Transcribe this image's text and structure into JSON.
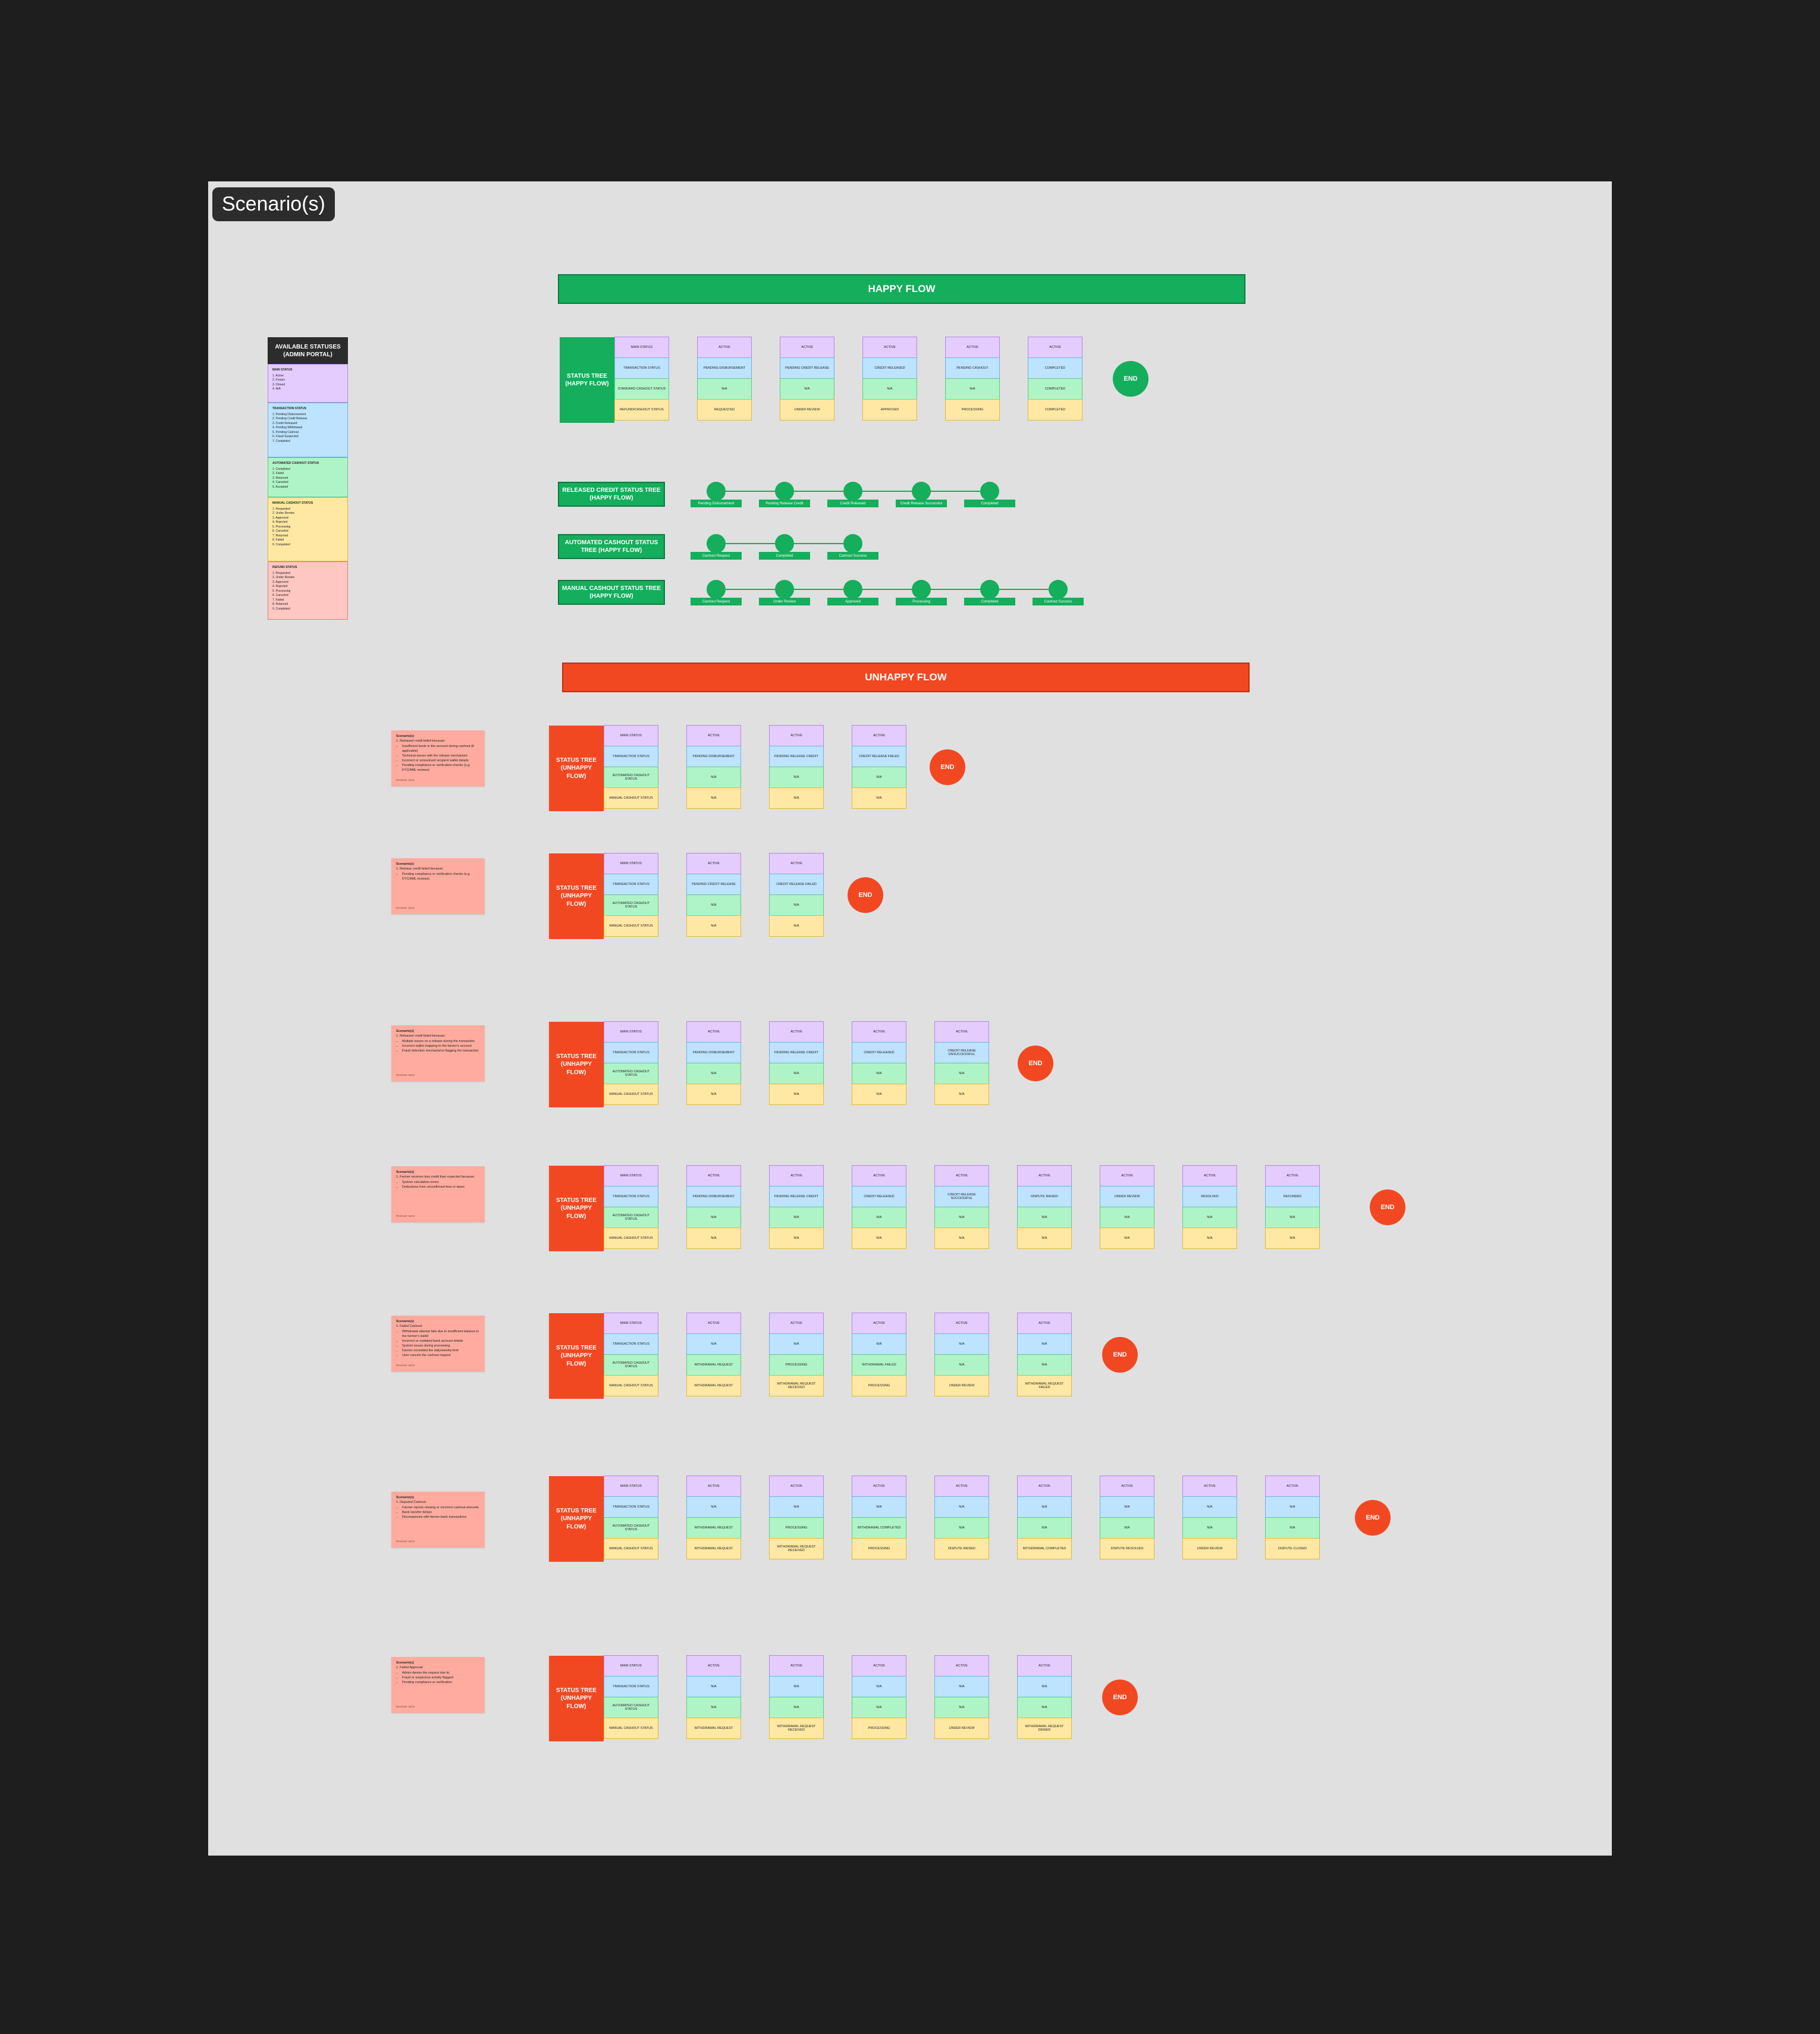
{
  "frame_label": "Scenario(s)",
  "happy_banner": "HAPPY FLOW",
  "unhappy_banner": "UNHAPPY FLOW",
  "end_label": "END",
  "legend": {
    "title": "AVAILABLE STATUSES (ADMIN PORTAL)",
    "sections": [
      {
        "color": "purple",
        "title": "MAIN STATUS",
        "items": [
          "1. Active",
          "2. Frozen",
          "3. Closed",
          "4. N/A"
        ]
      },
      {
        "color": "blue",
        "title": "TRANSACTION STATUS",
        "items": [
          "1. Pending Disbursement",
          "2. Pending Credit Release",
          "3. Credit Released",
          "4. Pending Withdrawal",
          "5. Pending Cashout",
          "6. Fraud Suspected",
          "7. Completed"
        ]
      },
      {
        "color": "green",
        "title": "AUTOMATED CASHOUT STATUS",
        "items": [
          "1. Completed",
          "2. Failed",
          "3. Returned",
          "4. Canceled",
          "5. Accepted"
        ]
      },
      {
        "color": "yellow",
        "title": "MANUAL CASHOUT STATUS",
        "items": [
          "1. Requested",
          "2. Under Review",
          "3. Approved",
          "4. Rejected",
          "5. Processing",
          "6. Canceled",
          "7. Returned",
          "8. Failed",
          "9. Completed"
        ]
      },
      {
        "color": "pink",
        "title": "REFUND STATUS",
        "items": [
          "1. Requested",
          "2. Under Review",
          "3. Approved",
          "4. Rejected",
          "5. Processing",
          "6. Canceled",
          "7. Failed",
          "8. Returned",
          "9. Completed"
        ]
      }
    ]
  },
  "happy_tree": {
    "label": "STATUS TREE (HAPPY FLOW)",
    "cards": [
      [
        "MAIN STATUS",
        "TRANSACTION STATUS",
        "STANDARD CASHOUT STATUS",
        "REFUND/CASHOUT STATUS"
      ],
      [
        "ACTIVE",
        "PENDING DISBURSEMENT",
        "N/A",
        "REQUESTED"
      ],
      [
        "ACTIVE",
        "PENDING CREDIT RELEASE",
        "N/A",
        "UNDER REVIEW"
      ],
      [
        "ACTIVE",
        "CREDIT RELEASED",
        "N/A",
        "APPROVED"
      ],
      [
        "ACTIVE",
        "PENDING CASHOUT",
        "N/A",
        "PROCESSING"
      ],
      [
        "ACTIVE",
        "COMPLETED",
        "COMPLETED",
        "COMPLETED"
      ]
    ]
  },
  "chains": [
    {
      "title": "RELEASED CREDIT STATUS TREE (HAPPY FLOW)",
      "nodes": [
        "Pending Disbursement",
        "Pending Release Credit",
        "Credit Released",
        "Credit Release Successful",
        "Completed"
      ]
    },
    {
      "title": "AUTOMATED CASHOUT STATUS TREE (HAPPY FLOW)",
      "nodes": [
        "Cashout Request",
        "Completed",
        "Cashout Success"
      ]
    },
    {
      "title": "MANUAL CASHOUT STATUS TREE (HAPPY FLOW)",
      "nodes": [
        "Cashout Request",
        "Under Review",
        "Approved",
        "Processing",
        "Completed",
        "Cashout Success"
      ]
    }
  ],
  "unhappy_label": "STATUS TREE (UNHAPPY FLOW)",
  "scenarios": [
    {
      "note": {
        "title": "Scenario(s)",
        "lead": "1. Released credit failed because:",
        "bullets": [
          "Insufficient funds in the account during cashout (if applicable)",
          "Technical issues with the release mechanism",
          "Incorrect or unresolved recipient wallet details",
          "Pending compliance or verification checks (e.g. KYC/AML reviews)"
        ],
        "sig": "Reviewer name"
      },
      "cards": [
        [
          "MAIN STATUS",
          "TRANSACTION STATUS",
          "AUTOMATED CASHOUT STATUS",
          "MANUAL CASHOUT STATUS"
        ],
        [
          "ACTIVE",
          "PENDING DISBURSEMENT",
          "N/A",
          "N/A"
        ],
        [
          "ACTIVE",
          "PENDING RELEASE CREDIT",
          "N/A",
          "N/A"
        ],
        [
          "ACTIVE",
          "CREDIT RELEASE FAILED",
          "N/A",
          "N/A"
        ]
      ]
    },
    {
      "note": {
        "title": "Scenario(s)",
        "lead": "1. Release credit failed because:",
        "bullets": [
          "Pending compliance or verification checks (e.g. KYC/AML reviews)"
        ],
        "sig": "Reviewer name"
      },
      "cards": [
        [
          "MAIN STATUS",
          "TRANSACTION STATUS",
          "AUTOMATED CASHOUT STATUS",
          "MANUAL CASHOUT STATUS"
        ],
        [
          "ACTIVE",
          "PENDING CREDIT RELEASE",
          "N/A",
          "N/A"
        ],
        [
          "ACTIVE",
          "CREDIT RELEASE FAILED",
          "N/A",
          "N/A"
        ]
      ]
    },
    {
      "note": {
        "title": "Scenario(s)",
        "lead": "1. Released credit failed because:",
        "bullets": [
          "Multiple issues on a release during the transaction",
          "Incorrect wallet mapping to the farmer's account",
          "Fraud detection mechanisms flagging the transaction"
        ],
        "sig": "Reviewer name"
      },
      "cards": [
        [
          "MAIN STATUS",
          "TRANSACTION STATUS",
          "AUTOMATED CASHOUT STATUS",
          "MANUAL CASHOUT STATUS"
        ],
        [
          "ACTIVE",
          "PENDING DISBURSEMENT",
          "N/A",
          "N/A"
        ],
        [
          "ACTIVE",
          "PENDING RELEASE CREDIT",
          "N/A",
          "N/A"
        ],
        [
          "ACTIVE",
          "CREDIT RELEASED",
          "N/A",
          "N/A"
        ],
        [
          "ACTIVE",
          "CREDIT RELEASE UNSUCCESSFUL",
          "N/A",
          "N/A"
        ]
      ]
    },
    {
      "note": {
        "title": "Scenario(s)",
        "lead": "1. Farmer receives less credit than expected because:",
        "bullets": [
          "System calculation errors",
          "Deductions from unconfirmed fees or taxes"
        ],
        "sig": "Reviewer name"
      },
      "cards": [
        [
          "MAIN STATUS",
          "TRANSACTION STATUS",
          "AUTOMATED CASHOUT STATUS",
          "MANUAL CASHOUT STATUS"
        ],
        [
          "ACTIVE",
          "PENDING DISBURSEMENT",
          "N/A",
          "N/A"
        ],
        [
          "ACTIVE",
          "PENDING RELEASE CREDIT",
          "N/A",
          "N/A"
        ],
        [
          "ACTIVE",
          "CREDIT RELEASED",
          "N/A",
          "N/A"
        ],
        [
          "ACTIVE",
          "CREDIT RELEASE SUCCESSFUL",
          "N/A",
          "N/A"
        ],
        [
          "ACTIVE",
          "DISPUTE RAISED",
          "N/A",
          "N/A"
        ],
        [
          "ACTIVE",
          "UNDER REVIEW",
          "N/A",
          "N/A"
        ],
        [
          "ACTIVE",
          "RESOLVED",
          "N/A",
          "N/A"
        ],
        [
          "ACTIVE",
          "REFUNDED",
          "N/A",
          "N/A"
        ]
      ]
    },
    {
      "note": {
        "title": "Scenario(s)",
        "lead": "1. Failed Cashout:",
        "bullets": [
          "Withdrawal attempt fails due to insufficient balance in the farmer's wallet",
          "Incorrect or outdated bank account details",
          "System issues during processing",
          "Farmer exceeded the daily/weekly limit",
          "User cancels the cashout request"
        ],
        "sig": "Reviewer name"
      },
      "cards": [
        [
          "MAIN STATUS",
          "TRANSACTION STATUS",
          "AUTOMATED CASHOUT STATUS",
          "MANUAL CASHOUT STATUS"
        ],
        [
          "ACTIVE",
          "N/A",
          "WITHDRAWAL REQUEST",
          "WITHDRAWAL REQUEST"
        ],
        [
          "ACTIVE",
          "N/A",
          "PROCESSING",
          "WITHDRAWAL REQUEST RECEIVED"
        ],
        [
          "ACTIVE",
          "N/A",
          "WITHDRAWAL FAILED",
          "PROCESSING"
        ],
        [
          "ACTIVE",
          "N/A",
          "N/A",
          "UNDER REVIEW"
        ],
        [
          "ACTIVE",
          "N/A",
          "N/A",
          "WITHDRAWAL REQUEST FAILED"
        ]
      ]
    },
    {
      "note": {
        "title": "Scenario(s)",
        "lead": "1. Disputed Cashout:",
        "bullets": [
          "Farmer reports missing or incorrect cashout amounts",
          "Bank transfer delays",
          "Discrepancies with farmer-bank transactions"
        ],
        "sig": "Reviewer name"
      },
      "cards": [
        [
          "MAIN STATUS",
          "TRANSACTION STATUS",
          "AUTOMATED CASHOUT STATUS",
          "MANUAL CASHOUT STATUS"
        ],
        [
          "ACTIVE",
          "N/A",
          "WITHDRAWAL REQUEST",
          "WITHDRAWAL REQUEST"
        ],
        [
          "ACTIVE",
          "N/A",
          "PROCESSING",
          "WITHDRAWAL REQUEST RECEIVED"
        ],
        [
          "ACTIVE",
          "N/A",
          "WITHDRAWAL COMPLETED",
          "PROCESSING"
        ],
        [
          "ACTIVE",
          "N/A",
          "N/A",
          "DISPUTE RAISED"
        ],
        [
          "ACTIVE",
          "N/A",
          "N/A",
          "WITHDRAWAL COMPLETED"
        ],
        [
          "ACTIVE",
          "N/A",
          "N/A",
          "DISPUTE RESOLVED"
        ],
        [
          "ACTIVE",
          "N/A",
          "N/A",
          "UNDER REVIEW"
        ],
        [
          "ACTIVE",
          "N/A",
          "N/A",
          "DISPUTE CLOSED"
        ]
      ]
    },
    {
      "note": {
        "title": "Scenario(s)",
        "lead": "1. Failed Approval:",
        "bullets": [
          "Admin denies the request due to:",
          "Fraud or suspicious activity flagged",
          "Pending compliance or verification"
        ],
        "sig": "Reviewer name"
      },
      "cards": [
        [
          "MAIN STATUS",
          "TRANSACTION STATUS",
          "AUTOMATED CASHOUT STATUS",
          "MANUAL CASHOUT STATUS"
        ],
        [
          "ACTIVE",
          "N/A",
          "N/A",
          "WITHDRAWAL REQUEST"
        ],
        [
          "ACTIVE",
          "N/A",
          "N/A",
          "WITHDRAWAL REQUEST RECEIVED"
        ],
        [
          "ACTIVE",
          "N/A",
          "N/A",
          "PROCESSING"
        ],
        [
          "ACTIVE",
          "N/A",
          "N/A",
          "UNDER REVIEW"
        ],
        [
          "ACTIVE",
          "N/A",
          "N/A",
          "WITHDRAWAL REQUEST DENIED"
        ]
      ]
    }
  ]
}
